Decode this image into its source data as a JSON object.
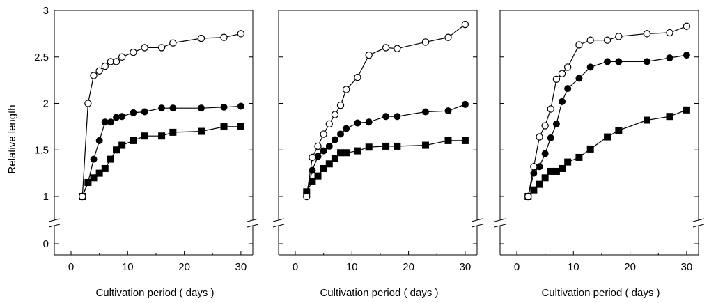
{
  "ylabel": "Relative length",
  "xlabel": "Cultivation period ( days )",
  "y_ticks": [
    {
      "v": 0,
      "label": "0"
    },
    {
      "v": 1,
      "label": "1"
    },
    {
      "v": 1.5,
      "label": "1.5"
    },
    {
      "v": 2,
      "label": "2"
    },
    {
      "v": 2.5,
      "label": "2.5"
    },
    {
      "v": 3,
      "label": "3"
    }
  ],
  "x_ticks": [
    {
      "v": 0,
      "label": "0"
    },
    {
      "v": 10,
      "label": "10"
    },
    {
      "v": 20,
      "label": "20"
    },
    {
      "v": 30,
      "label": "30"
    }
  ],
  "chart_data": [
    {
      "type": "line",
      "xlabel": "Cultivation period ( days )",
      "ylabel": "Relative length",
      "xlim": [
        0,
        30
      ],
      "ylim": [
        0,
        3
      ],
      "y_axis_break": [
        0,
        1
      ],
      "series": [
        {
          "marker": "open-circle",
          "points": [
            [
              2,
              1.0
            ],
            [
              3,
              2.0
            ],
            [
              4,
              2.3
            ],
            [
              5,
              2.35
            ],
            [
              6,
              2.4
            ],
            [
              7,
              2.45
            ],
            [
              8,
              2.45
            ],
            [
              9,
              2.5
            ],
            [
              11,
              2.55
            ],
            [
              13,
              2.6
            ],
            [
              16,
              2.6
            ],
            [
              18,
              2.65
            ],
            [
              23,
              2.7
            ],
            [
              27,
              2.71
            ],
            [
              30,
              2.75
            ]
          ]
        },
        {
          "marker": "filled-circle",
          "points": [
            [
              2,
              1.0
            ],
            [
              3,
              1.15
            ],
            [
              4,
              1.4
            ],
            [
              5,
              1.6
            ],
            [
              6,
              1.8
            ],
            [
              7,
              1.8
            ],
            [
              8,
              1.85
            ],
            [
              9,
              1.86
            ],
            [
              11,
              1.9
            ],
            [
              13,
              1.91
            ],
            [
              16,
              1.95
            ],
            [
              18,
              1.95
            ],
            [
              23,
              1.95
            ],
            [
              27,
              1.96
            ],
            [
              30,
              1.97
            ]
          ]
        },
        {
          "marker": "filled-square",
          "points": [
            [
              2,
              1.0
            ],
            [
              3,
              1.15
            ],
            [
              4,
              1.2
            ],
            [
              5,
              1.25
            ],
            [
              6,
              1.3
            ],
            [
              7,
              1.4
            ],
            [
              8,
              1.5
            ],
            [
              9,
              1.55
            ],
            [
              11,
              1.6
            ],
            [
              13,
              1.65
            ],
            [
              16,
              1.65
            ],
            [
              18,
              1.69
            ],
            [
              23,
              1.7
            ],
            [
              27,
              1.75
            ],
            [
              30,
              1.75
            ]
          ]
        }
      ]
    },
    {
      "type": "line",
      "xlabel": "Cultivation period ( days )",
      "xlim": [
        0,
        30
      ],
      "ylim": [
        0,
        3
      ],
      "y_axis_break": [
        0,
        1
      ],
      "series": [
        {
          "marker": "open-circle",
          "points": [
            [
              2,
              1.0
            ],
            [
              3,
              1.42
            ],
            [
              4,
              1.54
            ],
            [
              5,
              1.67
            ],
            [
              6,
              1.78
            ],
            [
              7,
              1.88
            ],
            [
              8,
              1.98
            ],
            [
              9,
              2.15
            ],
            [
              11,
              2.28
            ],
            [
              13,
              2.52
            ],
            [
              16,
              2.6
            ],
            [
              18,
              2.59
            ],
            [
              23,
              2.66
            ],
            [
              27,
              2.71
            ],
            [
              30,
              2.85
            ]
          ]
        },
        {
          "marker": "filled-circle",
          "points": [
            [
              2,
              1.04
            ],
            [
              3,
              1.28
            ],
            [
              4,
              1.43
            ],
            [
              5,
              1.49
            ],
            [
              6,
              1.54
            ],
            [
              7,
              1.61
            ],
            [
              8,
              1.67
            ],
            [
              9,
              1.73
            ],
            [
              11,
              1.79
            ],
            [
              13,
              1.8
            ],
            [
              16,
              1.86
            ],
            [
              18,
              1.86
            ],
            [
              23,
              1.91
            ],
            [
              27,
              1.92
            ],
            [
              30,
              1.99
            ]
          ]
        },
        {
          "marker": "filled-square",
          "points": [
            [
              2,
              1.05
            ],
            [
              3,
              1.16
            ],
            [
              4,
              1.22
            ],
            [
              5,
              1.3
            ],
            [
              6,
              1.35
            ],
            [
              7,
              1.41
            ],
            [
              8,
              1.47
            ],
            [
              9,
              1.47
            ],
            [
              11,
              1.49
            ],
            [
              13,
              1.53
            ],
            [
              16,
              1.54
            ],
            [
              18,
              1.54
            ],
            [
              23,
              1.55
            ],
            [
              27,
              1.6
            ],
            [
              30,
              1.6
            ]
          ]
        }
      ]
    },
    {
      "type": "line",
      "xlabel": "Cultivation period ( days )",
      "xlim": [
        0,
        30
      ],
      "ylim": [
        0,
        3
      ],
      "y_axis_break": [
        0,
        1
      ],
      "series": [
        {
          "marker": "open-circle",
          "points": [
            [
              2,
              1.0
            ],
            [
              3,
              1.32
            ],
            [
              4,
              1.64
            ],
            [
              5,
              1.76
            ],
            [
              6,
              1.94
            ],
            [
              7,
              2.26
            ],
            [
              8,
              2.32
            ],
            [
              9,
              2.39
            ],
            [
              11,
              2.63
            ],
            [
              13,
              2.68
            ],
            [
              16,
              2.68
            ],
            [
              18,
              2.72
            ],
            [
              23,
              2.75
            ],
            [
              27,
              2.76
            ],
            [
              30,
              2.83
            ]
          ]
        },
        {
          "marker": "filled-circle",
          "points": [
            [
              2,
              1.0
            ],
            [
              3,
              1.25
            ],
            [
              4,
              1.32
            ],
            [
              5,
              1.46
            ],
            [
              6,
              1.63
            ],
            [
              7,
              1.78
            ],
            [
              8,
              2.02
            ],
            [
              9,
              2.16
            ],
            [
              11,
              2.27
            ],
            [
              13,
              2.39
            ],
            [
              16,
              2.45
            ],
            [
              18,
              2.45
            ],
            [
              23,
              2.45
            ],
            [
              27,
              2.49
            ],
            [
              30,
              2.52
            ]
          ]
        },
        {
          "marker": "filled-square",
          "points": [
            [
              2,
              1.0
            ],
            [
              3,
              1.07
            ],
            [
              4,
              1.13
            ],
            [
              5,
              1.2
            ],
            [
              6,
              1.27
            ],
            [
              7,
              1.27
            ],
            [
              8,
              1.3
            ],
            [
              9,
              1.37
            ],
            [
              11,
              1.42
            ],
            [
              13,
              1.51
            ],
            [
              16,
              1.64
            ],
            [
              18,
              1.71
            ],
            [
              23,
              1.82
            ],
            [
              27,
              1.86
            ],
            [
              30,
              1.93
            ]
          ]
        }
      ]
    }
  ]
}
